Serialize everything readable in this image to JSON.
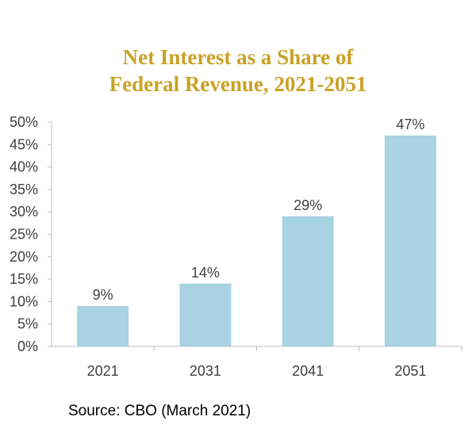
{
  "colors": {
    "title": "#c9a227",
    "bar": "#a8d3e2",
    "axis": "#bfbfbf",
    "text": "#404040"
  },
  "chart_data": {
    "type": "bar",
    "title": "Net Interest as a Share of Federal Revenue, 2021-2051",
    "title_lines": [
      "Net Interest as a Share of",
      "Federal Revenue, 2021-2051"
    ],
    "categories": [
      "2021",
      "2031",
      "2041",
      "2051"
    ],
    "values": [
      9,
      14,
      29,
      47
    ],
    "data_labels": [
      "9%",
      "14%",
      "29%",
      "47%"
    ],
    "ylim": [
      0,
      50
    ],
    "yticks": [
      0,
      5,
      10,
      15,
      20,
      25,
      30,
      35,
      40,
      45,
      50
    ],
    "ytick_labels": [
      "0%",
      "5%",
      "10%",
      "15%",
      "20%",
      "25%",
      "30%",
      "35%",
      "40%",
      "45%",
      "50%"
    ],
    "xlabel": "",
    "ylabel": "",
    "grid": false
  },
  "source": "Source: CBO (March 2021)"
}
